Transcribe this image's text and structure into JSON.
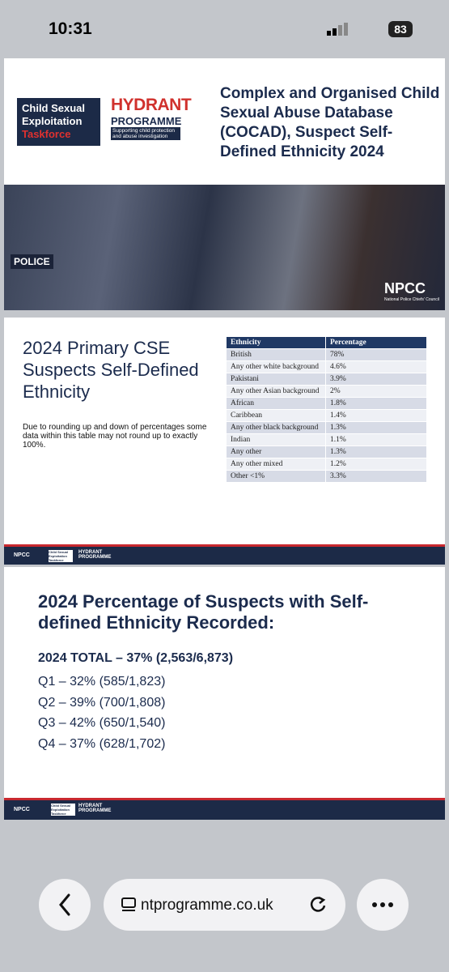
{
  "status_bar": {
    "time": "10:31",
    "battery": "83"
  },
  "slide1": {
    "logo_cse": [
      "Child Sexual",
      "Exploitation",
      "Taskforce"
    ],
    "logo_hydrant": [
      "HYDRANT",
      "PROGRAMME",
      "Supporting child protection and abuse investigation"
    ],
    "title": "Complex and Organised Child Sexual Abuse Database (COCAD), Suspect Self-Defined Ethnicity 2024",
    "photo_text": "POLICE",
    "npcc": "NPCC",
    "npcc_full": "National Police Chiefs' Council"
  },
  "slide2": {
    "title": "2024 Primary CSE Suspects Self-Defined Ethnicity",
    "note": "Due to rounding up and down of percentages some data within this table may not round up to exactly 100%.",
    "table": {
      "header": [
        "Ethnicity",
        "Percentage"
      ],
      "rows": [
        [
          "British",
          "78%"
        ],
        [
          "Any other white background",
          "4.6%"
        ],
        [
          "Pakistani",
          "3.9%"
        ],
        [
          "Any other Asian background",
          "2%"
        ],
        [
          "African",
          "1.8%"
        ],
        [
          "Caribbean",
          "1.4%"
        ],
        [
          "Any other black background",
          "1.3%"
        ],
        [
          "Indian",
          "1.1%"
        ],
        [
          "Any other",
          "1.3%"
        ],
        [
          "Any other mixed",
          "1.2%"
        ],
        [
          "Other <1%",
          "3.3%"
        ]
      ]
    }
  },
  "footer": {
    "npcc": "NPCC",
    "cse": "Child Sexual Exploitation Taskforce",
    "hydrant": "HYDRANT PROGRAMME"
  },
  "slide3": {
    "title": "2024 Percentage of Suspects with Self-defined Ethnicity Recorded:",
    "total": "2024 TOTAL – 37% (2,563/6,873)",
    "quarters": [
      "Q1 – 32% (585/1,823)",
      "Q2 – 39% (700/1,808)",
      "Q3 – 42% (650/1,540)",
      "Q4 – 37% (628/1,702)"
    ]
  },
  "browser": {
    "url": "ntprogramme.co.uk"
  }
}
